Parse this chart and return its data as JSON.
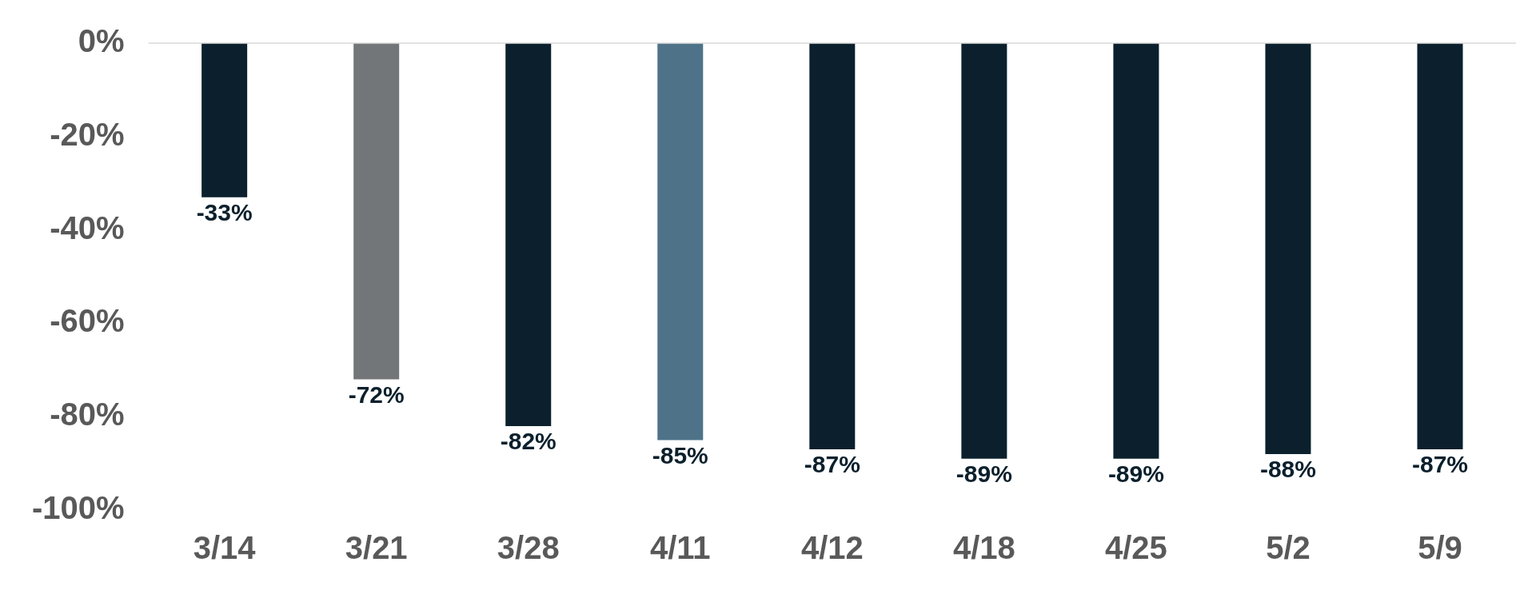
{
  "chart_data": {
    "type": "bar",
    "categories": [
      "3/14",
      "3/21",
      "3/28",
      "4/11",
      "4/12",
      "4/18",
      "4/25",
      "5/2",
      "5/9"
    ],
    "values": [
      -33,
      -72,
      -82,
      -85,
      -87,
      -89,
      -89,
      -88,
      -87
    ],
    "colors": [
      "#0b202c",
      "#737678",
      "#0b202c",
      "#4e7389",
      "#0b202c",
      "#0b202c",
      "#0b202c",
      "#0b202c",
      "#0b202c"
    ],
    "value_labels": [
      "-33%",
      "-72%",
      "-82%",
      "-85%",
      "-87%",
      "-89%",
      "-89%",
      "-88%",
      "-87%"
    ],
    "ylim": [
      -100,
      0
    ],
    "yticks": [
      {
        "value": 0,
        "label": "0%"
      },
      {
        "value": -20,
        "label": "-20%"
      },
      {
        "value": -40,
        "label": "-40%"
      },
      {
        "value": -60,
        "label": "-60%"
      },
      {
        "value": -80,
        "label": "-80%"
      },
      {
        "value": -100,
        "label": "-100%"
      }
    ],
    "ref_lines": [
      {
        "axis": "y",
        "value": 0,
        "color": "#d9d9d9"
      }
    ],
    "grid": false,
    "legend": false
  }
}
